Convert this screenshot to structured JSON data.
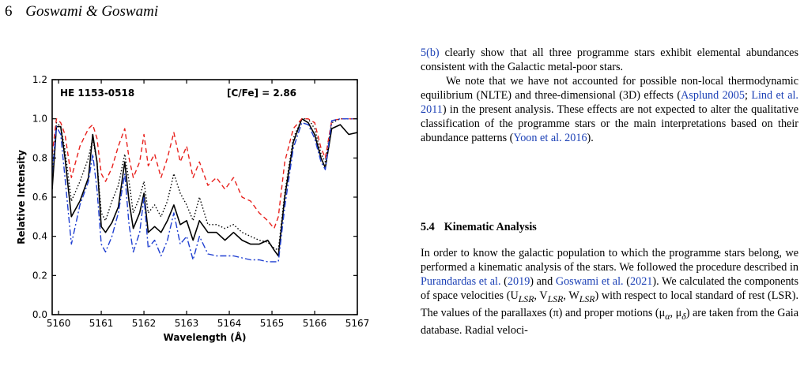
{
  "header": {
    "page_number": "6",
    "authors": "Goswami & Goswami"
  },
  "chart_data": {
    "type": "line",
    "annotation_left": "HE 1153-0518",
    "annotation_right": "[C/Fe] = 2.86",
    "xlabel": "Wavelength (Å)",
    "ylabel": "Relative Intensity",
    "xlim": [
      5159.85,
      5167.0
    ],
    "ylim": [
      0.0,
      1.2
    ],
    "xticks": [
      "5160",
      "5161",
      "5162",
      "5163",
      "5164",
      "5165",
      "5166",
      "5167"
    ],
    "yticks": [
      "0.0",
      "0.2",
      "0.4",
      "0.6",
      "0.8",
      "1.0",
      "1.2"
    ],
    "colors": {
      "observed": "#000000",
      "model_dotted": "#000000",
      "model_red": "#e8211d",
      "model_blue": "#1f3fd1"
    },
    "series": [
      {
        "style": "solid",
        "x": [
          5159.85,
          5159.95,
          5160.05,
          5160.15,
          5160.3,
          5160.5,
          5160.7,
          5160.8,
          5160.9,
          5161.0,
          5161.1,
          5161.25,
          5161.4,
          5161.55,
          5161.65,
          5161.75,
          5161.9,
          5162.0,
          5162.1,
          5162.25,
          5162.4,
          5162.55,
          5162.7,
          5162.85,
          5163.0,
          5163.15,
          5163.3,
          5163.5,
          5163.7,
          5163.9,
          5164.1,
          5164.3,
          5164.5,
          5164.7,
          5164.9,
          5165.05,
          5165.15,
          5165.3,
          5165.5,
          5165.7,
          5165.85,
          5166.0,
          5166.15,
          5166.25,
          5166.4,
          5166.6,
          5166.8,
          5167.0
        ],
        "y": [
          0.64,
          0.96,
          0.96,
          0.8,
          0.5,
          0.58,
          0.7,
          0.92,
          0.78,
          0.45,
          0.42,
          0.47,
          0.55,
          0.78,
          0.58,
          0.44,
          0.52,
          0.62,
          0.42,
          0.45,
          0.42,
          0.48,
          0.56,
          0.46,
          0.48,
          0.38,
          0.48,
          0.42,
          0.42,
          0.38,
          0.42,
          0.38,
          0.36,
          0.36,
          0.38,
          0.33,
          0.3,
          0.6,
          0.88,
          1.0,
          0.98,
          0.92,
          0.8,
          0.75,
          0.95,
          0.97,
          0.92,
          0.93
        ]
      },
      {
        "style": "dotted",
        "x": [
          5159.85,
          5159.95,
          5160.05,
          5160.15,
          5160.3,
          5160.5,
          5160.7,
          5160.8,
          5160.9,
          5161.0,
          5161.1,
          5161.25,
          5161.4,
          5161.55,
          5161.65,
          5161.75,
          5161.9,
          5162.0,
          5162.1,
          5162.25,
          5162.4,
          5162.55,
          5162.7,
          5162.85,
          5163.0,
          5163.15,
          5163.3,
          5163.5,
          5163.7,
          5163.9,
          5164.1,
          5164.3,
          5164.5,
          5164.7,
          5164.9,
          5165.05,
          5165.15,
          5165.3,
          5165.5,
          5165.7,
          5165.85,
          5166.0,
          5166.15,
          5166.25,
          5166.4,
          5166.6,
          5166.8,
          5167.0
        ],
        "y": [
          0.72,
          0.98,
          0.96,
          0.84,
          0.58,
          0.68,
          0.8,
          0.9,
          0.78,
          0.52,
          0.48,
          0.58,
          0.66,
          0.82,
          0.68,
          0.52,
          0.6,
          0.68,
          0.52,
          0.56,
          0.5,
          0.58,
          0.72,
          0.62,
          0.56,
          0.48,
          0.6,
          0.46,
          0.46,
          0.44,
          0.46,
          0.42,
          0.4,
          0.38,
          0.37,
          0.34,
          0.33,
          0.62,
          0.9,
          1.0,
          1.0,
          0.95,
          0.82,
          0.78,
          0.98,
          1.0,
          1.0,
          1.0
        ]
      },
      {
        "style": "dashed",
        "x": [
          5159.85,
          5159.95,
          5160.05,
          5160.15,
          5160.3,
          5160.5,
          5160.7,
          5160.8,
          5160.9,
          5161.0,
          5161.1,
          5161.25,
          5161.4,
          5161.55,
          5161.65,
          5161.75,
          5161.9,
          5162.0,
          5162.1,
          5162.25,
          5162.4,
          5162.55,
          5162.7,
          5162.85,
          5163.0,
          5163.15,
          5163.3,
          5163.5,
          5163.7,
          5163.9,
          5164.1,
          5164.3,
          5164.5,
          5164.7,
          5164.9,
          5165.05,
          5165.15,
          5165.3,
          5165.5,
          5165.7,
          5165.85,
          5166.0,
          5166.15,
          5166.25,
          5166.4,
          5166.6,
          5166.8,
          5167.0
        ],
        "y": [
          0.82,
          1.0,
          0.98,
          0.92,
          0.7,
          0.86,
          0.95,
          0.97,
          0.9,
          0.72,
          0.68,
          0.75,
          0.86,
          0.95,
          0.8,
          0.7,
          0.78,
          0.92,
          0.76,
          0.82,
          0.7,
          0.8,
          0.93,
          0.78,
          0.86,
          0.7,
          0.78,
          0.66,
          0.7,
          0.64,
          0.7,
          0.6,
          0.58,
          0.52,
          0.48,
          0.44,
          0.5,
          0.78,
          0.95,
          1.0,
          1.0,
          0.98,
          0.85,
          0.8,
          0.99,
          1.0,
          1.0,
          1.0
        ]
      },
      {
        "style": "dashdot",
        "x": [
          5159.85,
          5159.95,
          5160.05,
          5160.15,
          5160.3,
          5160.5,
          5160.7,
          5160.8,
          5160.9,
          5161.0,
          5161.1,
          5161.25,
          5161.4,
          5161.55,
          5161.65,
          5161.75,
          5161.9,
          5162.0,
          5162.1,
          5162.25,
          5162.4,
          5162.55,
          5162.7,
          5162.85,
          5163.0,
          5163.15,
          5163.3,
          5163.5,
          5163.7,
          5163.9,
          5164.1,
          5164.3,
          5164.5,
          5164.7,
          5164.9,
          5165.05,
          5165.15,
          5165.3,
          5165.5,
          5165.7,
          5165.85,
          5166.0,
          5166.15,
          5166.25,
          5166.4,
          5166.6,
          5166.8,
          5167.0
        ],
        "y": [
          0.72,
          0.96,
          0.92,
          0.7,
          0.36,
          0.56,
          0.68,
          0.82,
          0.64,
          0.36,
          0.32,
          0.4,
          0.52,
          0.72,
          0.46,
          0.32,
          0.42,
          0.6,
          0.34,
          0.38,
          0.3,
          0.38,
          0.52,
          0.36,
          0.4,
          0.28,
          0.4,
          0.31,
          0.3,
          0.3,
          0.3,
          0.29,
          0.28,
          0.28,
          0.27,
          0.27,
          0.27,
          0.55,
          0.85,
          0.98,
          0.97,
          0.9,
          0.78,
          0.74,
          0.99,
          1.0,
          1.0,
          1.0
        ]
      }
    ]
  },
  "col": {
    "p1_link": "5(b)",
    "p1_text": " clearly show that all three programme stars exhibit elemental abundances consistent with the Galactic metal-poor stars.",
    "p2_a": "We note that we have not accounted for possible non-local thermodynamic equilibrium (NLTE) and three-dimensional (3D) effects (",
    "p2_l1": "Asplund 2005",
    "p2_b": "; ",
    "p2_l2": "Lind et al. 2011",
    "p2_c": ") in the present analysis. These effects are not expected to alter the qualitative classification of the programme stars or the main interpretations based on their abundance patterns (",
    "p2_l3": "Yoon et al. 2016",
    "p2_d": ").",
    "sec_num": "5.4",
    "sec_title": "Kinematic Analysis",
    "p3_a": "In order to know the galactic population to which the programme stars belong, we performed a kinematic analysis of the stars. We followed the procedure described in ",
    "p3_l1": "Purandardas et al.",
    "p3_b": " (",
    "p3_l2": "2019",
    "p3_c": ") and ",
    "p3_l3": "Goswami et al.",
    "p3_d": " (",
    "p3_l4": "2021",
    "p3_e": "). We calculated the components of space velocities (U",
    "p3_sub1": "LSR",
    "p3_f": ", V",
    "p3_sub2": "LSR",
    "p3_g": ", W",
    "p3_sub3": "LSR",
    "p3_h": ") with respect to local standard of rest (LSR). The values of the parallaxes (π) and proper motions (μ",
    "p3_sub4": "α",
    "p3_i": ", μ",
    "p3_sub5": "δ",
    "p3_j": ") are taken from the Gaia database. Radial veloci-"
  }
}
